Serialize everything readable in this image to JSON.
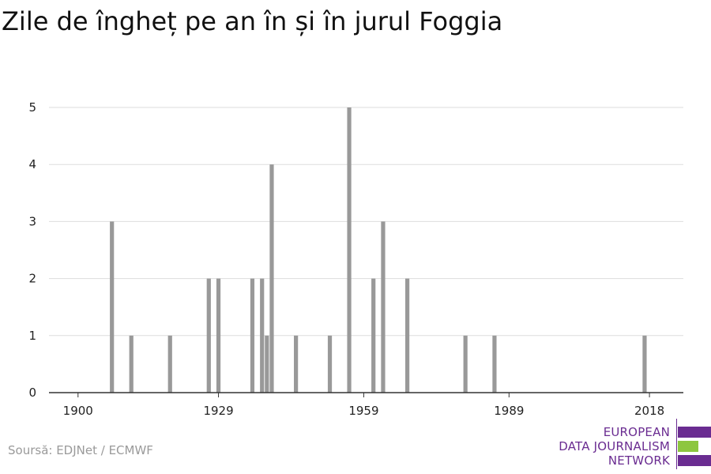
{
  "title": "Zile de îngheț pe an în și în jurul Foggia",
  "source": "Soursă: EDJNet / ECMWF",
  "logo": {
    "lines": [
      "EUROPEAN",
      "DATA JOURNALISM",
      "NETWORK"
    ],
    "colors": [
      "#6a2c91",
      "#8dc63f",
      "#6a2c91"
    ]
  },
  "colors": {
    "bar": "#999999",
    "grid": "#dddddd",
    "axis": "#333333"
  },
  "chart_data": {
    "type": "bar",
    "x_ticks": [
      1900,
      1929,
      1959,
      1989,
      2018
    ],
    "y_ticks": [
      0,
      1,
      2,
      3,
      4,
      5
    ],
    "xlim": [
      1894,
      2025
    ],
    "ylim": [
      0,
      5
    ],
    "grid": true,
    "x": [
      1907,
      1911,
      1919,
      1927,
      1929,
      1936,
      1938,
      1939,
      1940,
      1945,
      1952,
      1956,
      1961,
      1963,
      1968,
      1980,
      1986,
      2017
    ],
    "values": [
      3,
      1,
      1,
      2,
      2,
      2,
      2,
      1,
      4,
      1,
      1,
      5,
      2,
      3,
      2,
      1,
      1,
      1
    ]
  }
}
